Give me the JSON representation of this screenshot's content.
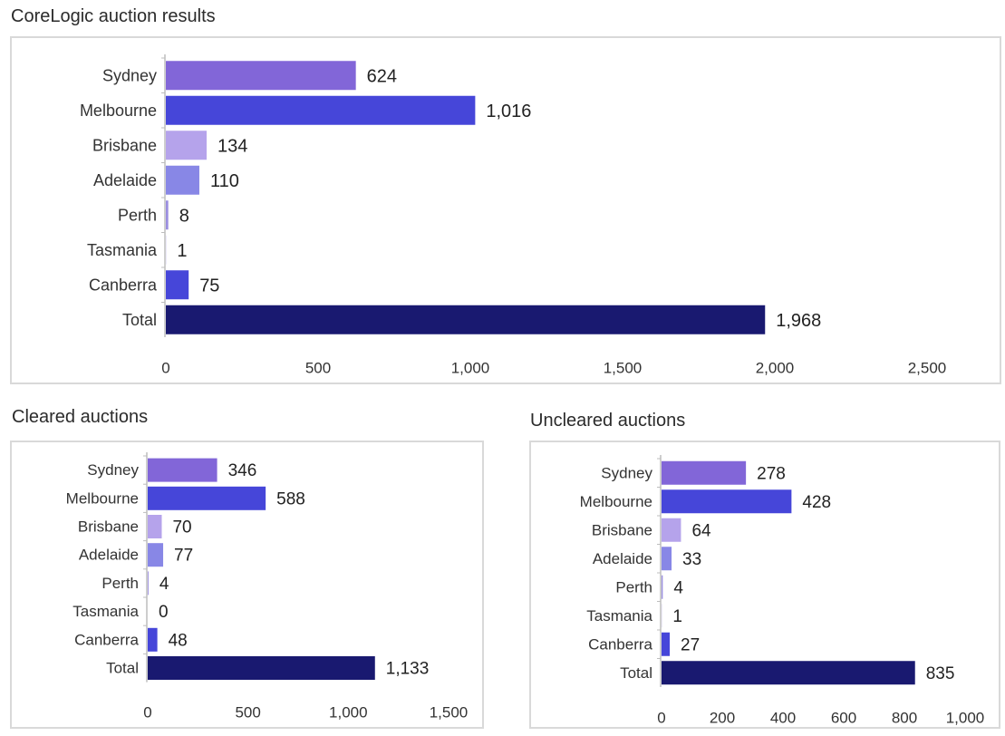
{
  "colors": {
    "sydney": "#8266d8",
    "melbourne": "#4646d9",
    "brisbane": "#b5a3eb",
    "adelaide": "#8887e6",
    "perth": "#9a8ee0",
    "tasmania": "#c9c2ef",
    "canberra": "#4646d9",
    "total": "#191970",
    "axis": "#bdbdbd",
    "label_text": "#333333",
    "value_text": "#222222"
  },
  "chart_data": [
    {
      "type": "bar",
      "orientation": "horizontal",
      "title": "CoreLogic auction results",
      "categories": [
        "Sydney",
        "Melbourne",
        "Brisbane",
        "Adelaide",
        "Perth",
        "Tasmania",
        "Canberra",
        "Total"
      ],
      "values": [
        624,
        1016,
        134,
        110,
        8,
        1,
        75,
        1968
      ],
      "value_labels": [
        "624",
        "1,016",
        "134",
        "110",
        "8",
        "1",
        "75",
        "1,968"
      ],
      "xlim": [
        0,
        2500
      ],
      "ticks": [
        0,
        500,
        1000,
        1500,
        2000,
        2500
      ],
      "tick_labels": [
        "0",
        "500",
        "1,000",
        "1,500",
        "2,000",
        "2,500"
      ],
      "grid": false,
      "legend": "none"
    },
    {
      "type": "bar",
      "orientation": "horizontal",
      "title": "Cleared auctions",
      "categories": [
        "Sydney",
        "Melbourne",
        "Brisbane",
        "Adelaide",
        "Perth",
        "Tasmania",
        "Canberra",
        "Total"
      ],
      "values": [
        346,
        588,
        70,
        77,
        4,
        0,
        48,
        1133
      ],
      "value_labels": [
        "346",
        "588",
        "70",
        "77",
        "4",
        "0",
        "48",
        "1,133"
      ],
      "xlim": [
        0,
        1500
      ],
      "ticks": [
        0,
        500,
        1000,
        1500
      ],
      "tick_labels": [
        "0",
        "500",
        "1,000",
        "1,500"
      ],
      "grid": false,
      "legend": "none"
    },
    {
      "type": "bar",
      "orientation": "horizontal",
      "title": "Uncleared auctions",
      "categories": [
        "Sydney",
        "Melbourne",
        "Brisbane",
        "Adelaide",
        "Perth",
        "Tasmania",
        "Canberra",
        "Total"
      ],
      "values": [
        278,
        428,
        64,
        33,
        4,
        1,
        27,
        835
      ],
      "value_labels": [
        "278",
        "428",
        "64",
        "33",
        "4",
        "1",
        "27",
        "835"
      ],
      "xlim": [
        0,
        1000
      ],
      "ticks": [
        0,
        200,
        400,
        600,
        800,
        1000
      ],
      "tick_labels": [
        "0",
        "200",
        "400",
        "600",
        "800",
        "1,000"
      ],
      "grid": false,
      "legend": "none"
    }
  ]
}
